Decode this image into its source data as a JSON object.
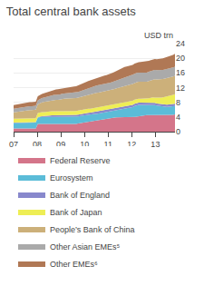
{
  "chart_data": {
    "type": "area",
    "title": "Total central bank assets",
    "ylabel": "USD trn",
    "stacked": true,
    "grid": "y",
    "legend": "bottom",
    "xlim": [
      2007.0,
      2013.83
    ],
    "xticks": [
      {
        "value": 2007,
        "label": "07"
      },
      {
        "value": 2008,
        "label": "08"
      },
      {
        "value": 2009,
        "label": "09"
      },
      {
        "value": 2010,
        "label": "10"
      },
      {
        "value": 2011,
        "label": "11"
      },
      {
        "value": 2012,
        "label": "12"
      },
      {
        "value": 2013,
        "label": "13"
      }
    ],
    "ylim": [
      0,
      24
    ],
    "yticks": [
      0,
      4,
      8,
      12,
      16,
      20,
      24
    ],
    "x": [
      2007,
      2007.085375,
      2007.17075,
      2007.256125,
      2007.3415,
      2007.426875,
      2007.51225,
      2007.597625,
      2007.683,
      2007.768375,
      2007.85375,
      2007.939125,
      2008.0245,
      2008.109875,
      2008.19525,
      2008.280625,
      2008.366,
      2008.451375,
      2008.53675,
      2008.622125,
      2008.7075,
      2008.792875,
      2008.87825,
      2008.963625,
      2009.049,
      2009.134375,
      2009.21975,
      2009.305125,
      2009.3905,
      2009.475875,
      2009.56125,
      2009.646625,
      2009.732,
      2009.817375,
      2009.90275,
      2009.988125,
      2010.0735,
      2010.158875,
      2010.24425,
      2010.329625,
      2010.415,
      2010.500375,
      2010.58575,
      2010.671125,
      2010.7565,
      2010.841875,
      2010.92725,
      2011.012625,
      2011.098,
      2011.183375,
      2011.26875,
      2011.354125,
      2011.4395,
      2011.524875,
      2011.61025,
      2011.695625,
      2011.781,
      2011.866375,
      2011.95175,
      2012.037125,
      2012.1225,
      2012.207875,
      2012.29325,
      2012.378625,
      2012.464,
      2012.549375,
      2012.63475,
      2012.720125,
      2012.8055,
      2012.890875,
      2012.97625,
      2013.061625,
      2013.147,
      2013.232375,
      2013.31775,
      2013.403125,
      2013.4885,
      2013.573875,
      2013.65925,
      2013.744625,
      2013.83
    ],
    "series": [
      {
        "name": "Federal Reserve",
        "color": "#d4758a",
        "values": [
          0.85,
          0.85,
          0.87,
          0.87,
          0.87,
          0.87,
          0.88,
          0.88,
          0.88,
          0.88,
          0.88,
          0.88,
          2.1,
          2.1,
          2.0,
          2.0,
          2.0,
          2.0,
          2.05,
          2.05,
          2.05,
          2.05,
          2.0,
          2.0,
          2.1,
          2.1,
          2.1,
          2.1,
          2.1,
          2.1,
          2.1,
          2.1,
          2.2,
          2.3,
          2.4,
          2.5,
          2.6,
          2.7,
          2.8,
          2.9,
          2.95,
          3.0,
          3.1,
          3.2,
          3.3,
          3.4,
          3.5,
          3.6,
          3.7,
          3.8,
          3.85,
          3.9,
          3.9,
          3.9,
          3.9,
          3.9,
          3.9,
          3.9,
          3.9,
          3.9,
          4.0,
          4.1,
          4.2,
          4.3,
          4.4,
          4.5,
          4.5,
          4.5,
          4.5,
          4.5,
          4.45,
          4.4,
          4.4,
          4.4,
          4.4,
          4.4,
          4.45,
          4.5,
          4.55,
          4.6,
          4.7
        ]
      },
      {
        "name": "Eurosystem",
        "color": "#5bbcd8",
        "values": [
          1.5,
          1.5,
          1.5,
          1.5,
          1.5,
          1.5,
          1.55,
          1.55,
          1.6,
          1.6,
          1.6,
          1.6,
          1.75,
          1.9,
          2.0,
          2.0,
          1.95,
          1.95,
          1.95,
          2.0,
          2.0,
          2.0,
          2.0,
          2.0,
          1.95,
          1.95,
          1.95,
          1.95,
          1.95,
          1.95,
          1.95,
          1.95,
          1.95,
          1.95,
          1.95,
          1.95,
          1.9,
          1.9,
          1.85,
          1.85,
          1.85,
          1.85,
          1.85,
          1.85,
          1.85,
          1.85,
          1.85,
          1.85,
          1.9,
          1.95,
          2.0,
          2.05,
          2.1,
          2.2,
          2.3,
          2.45,
          2.55,
          2.65,
          2.75,
          2.8,
          3.0,
          3.1,
          3.1,
          3.0,
          2.9,
          2.8,
          2.75,
          2.8,
          2.85,
          2.9,
          2.8,
          2.7,
          2.6,
          2.5,
          2.4,
          2.35,
          2.3,
          2.3,
          2.3,
          2.3,
          2.3
        ]
      },
      {
        "name": "Bank of England",
        "color": "#8888cc",
        "values": [
          0.1,
          0.1,
          0.1,
          0.1,
          0.1,
          0.1,
          0.1,
          0.1,
          0.1,
          0.1,
          0.1,
          0.1,
          0.1,
          0.15,
          0.2,
          0.25,
          0.3,
          0.35,
          0.4,
          0.4,
          0.4,
          0.4,
          0.4,
          0.4,
          0.4,
          0.4,
          0.4,
          0.4,
          0.45,
          0.5,
          0.5,
          0.5,
          0.5,
          0.52,
          0.52,
          0.52,
          0.52,
          0.52,
          0.52,
          0.52,
          0.52,
          0.52,
          0.52,
          0.52,
          0.52,
          0.52,
          0.52,
          0.52,
          0.52,
          0.52,
          0.52,
          0.55,
          0.57,
          0.57,
          0.57,
          0.57,
          0.57,
          0.57,
          0.57,
          0.6,
          0.6,
          0.6,
          0.6,
          0.6,
          0.6,
          0.6,
          0.6,
          0.6,
          0.6,
          0.6,
          0.6,
          0.6,
          0.6,
          0.6,
          0.6,
          0.6,
          0.6,
          0.6,
          0.6,
          0.6,
          0.6
        ]
      },
      {
        "name": "Bank of Japan",
        "color": "#eeee55",
        "values": [
          1.1,
          1.1,
          1.1,
          1.1,
          1.1,
          1.1,
          1.1,
          1.1,
          1.1,
          1.1,
          1.1,
          1.1,
          1.1,
          1.1,
          1.1,
          1.1,
          1.1,
          1.1,
          1.1,
          1.1,
          1.1,
          1.1,
          1.1,
          1.1,
          1.1,
          1.1,
          1.1,
          1.1,
          1.1,
          1.1,
          1.1,
          1.1,
          1.1,
          1.1,
          1.1,
          1.1,
          1.1,
          1.1,
          1.1,
          1.1,
          1.1,
          1.1,
          1.1,
          1.1,
          1.1,
          1.1,
          1.1,
          1.1,
          1.1,
          1.1,
          1.1,
          1.1,
          1.1,
          1.1,
          1.1,
          1.1,
          1.1,
          1.1,
          1.1,
          1.1,
          1.1,
          1.1,
          1.1,
          1.1,
          1.1,
          1.1,
          1.15,
          1.2,
          1.25,
          1.35,
          1.45,
          1.55,
          1.65,
          1.8,
          1.95,
          2.1,
          2.2,
          2.3,
          2.4,
          2.5,
          2.6
        ]
      },
      {
        "name": "People’s Bank of China",
        "color": "#ccb07a",
        "values": [
          1.7,
          1.8,
          1.9,
          2.0,
          2.05,
          2.1,
          2.15,
          2.2,
          2.2,
          2.2,
          2.3,
          2.3,
          2.4,
          2.5,
          2.65,
          2.75,
          2.85,
          2.95,
          3.0,
          3.05,
          3.1,
          3.1,
          3.15,
          3.2,
          3.3,
          3.4,
          3.5,
          3.5,
          3.5,
          3.5,
          3.5,
          3.5,
          3.5,
          3.55,
          3.6,
          3.65,
          3.7,
          3.8,
          3.9,
          4.0,
          4.05,
          4.1,
          4.1,
          4.1,
          4.1,
          4.1,
          4.1,
          4.1,
          4.1,
          4.1,
          4.15,
          4.2,
          4.3,
          4.4,
          4.5,
          4.5,
          4.5,
          4.5,
          4.55,
          4.6,
          4.6,
          4.6,
          4.6,
          4.6,
          4.6,
          4.6,
          4.6,
          4.7,
          4.8,
          4.9,
          5.0,
          5.0,
          5.0,
          5.0,
          5.0,
          5.0,
          5.0,
          5.0,
          5.0,
          5.0,
          5.0
        ]
      },
      {
        "name": "Other Asian EMEs⁵",
        "color": "#aaaaaa",
        "values": [
          1.0,
          1.0,
          1.0,
          1.0,
          1.05,
          1.05,
          1.05,
          1.05,
          1.05,
          1.05,
          1.05,
          1.1,
          1.1,
          1.15,
          1.2,
          1.2,
          1.25,
          1.3,
          1.3,
          1.35,
          1.35,
          1.4,
          1.4,
          1.45,
          1.5,
          1.5,
          1.5,
          1.5,
          1.5,
          1.5,
          1.5,
          1.5,
          1.55,
          1.6,
          1.65,
          1.7,
          1.75,
          1.8,
          1.85,
          1.9,
          1.95,
          2.0,
          2.0,
          2.0,
          2.0,
          2.0,
          2.0,
          2.0,
          2.05,
          2.1,
          2.15,
          2.2,
          2.25,
          2.3,
          2.35,
          2.4,
          2.45,
          2.5,
          2.5,
          2.5,
          2.5,
          2.5,
          2.5,
          2.5,
          2.5,
          2.5,
          2.5,
          2.5,
          2.5,
          2.5,
          2.5,
          2.5,
          2.5,
          2.5,
          2.5,
          2.5,
          2.5,
          2.5,
          2.5,
          2.5,
          2.5
        ]
      },
      {
        "name": "Other EMEs⁶",
        "color": "#b07855",
        "values": [
          1.0,
          1.0,
          1.0,
          1.0,
          1.05,
          1.1,
          1.1,
          1.1,
          1.1,
          1.1,
          1.1,
          1.1,
          1.1,
          1.1,
          1.1,
          1.15,
          1.2,
          1.25,
          1.3,
          1.35,
          1.4,
          1.45,
          1.5,
          1.5,
          1.5,
          1.5,
          1.5,
          1.5,
          1.55,
          1.6,
          1.65,
          1.7,
          1.75,
          1.8,
          1.85,
          1.9,
          1.95,
          2.0,
          2.0,
          2.0,
          2.05,
          2.1,
          2.15,
          2.2,
          2.25,
          2.3,
          2.35,
          2.4,
          2.4,
          2.45,
          2.5,
          2.55,
          2.6,
          2.65,
          2.7,
          2.7,
          2.7,
          2.7,
          2.7,
          2.7,
          2.75,
          2.8,
          2.85,
          2.9,
          2.95,
          3.0,
          3.0,
          3.0,
          3.0,
          3.0,
          3.0,
          3.0,
          3.05,
          3.1,
          3.15,
          3.2,
          3.25,
          3.3,
          3.35,
          3.4,
          3.5
        ]
      }
    ]
  }
}
